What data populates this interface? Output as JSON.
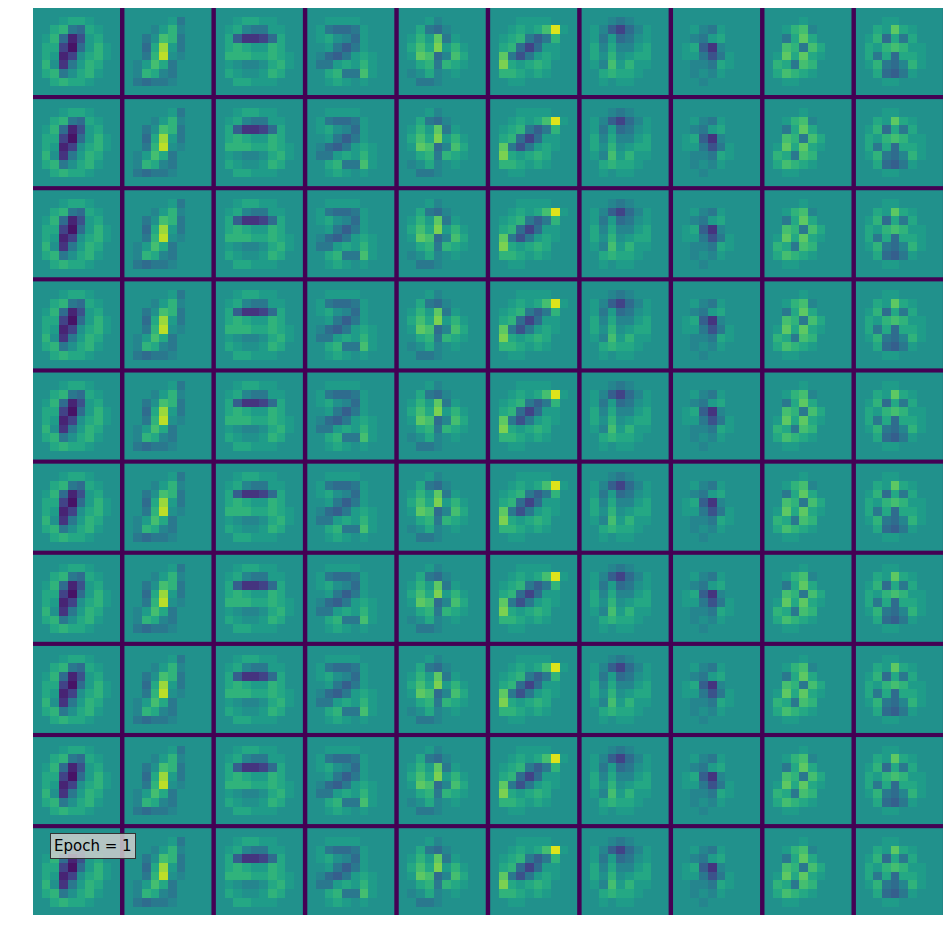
{
  "chart_data": {
    "type": "heatmap_grid",
    "annotation": "Epoch = 1",
    "rows": 10,
    "color": "Viridis",
    "zlim": [
      -1,
      1
    ],
    "tick_labels": false,
    "filters": [
      [
        [
          0,
          0,
          0,
          0,
          0,
          0,
          0,
          0,
          0,
          0
        ],
        [
          0,
          0,
          0,
          0.1,
          0.2,
          0.2,
          0.1,
          0,
          0,
          0
        ],
        [
          0,
          0,
          0.2,
          0.3,
          -0.2,
          -0.3,
          0.2,
          0.1,
          0,
          0
        ],
        [
          0,
          0.1,
          0.3,
          -0.3,
          -0.8,
          -0.5,
          0.1,
          0.2,
          0,
          0
        ],
        [
          0,
          0.2,
          0.2,
          -0.6,
          -0.9,
          -0.3,
          0.1,
          0.3,
          0.1,
          0
        ],
        [
          0,
          0.2,
          0.1,
          -0.8,
          -0.6,
          0,
          0.2,
          0.3,
          0.1,
          0
        ],
        [
          0,
          0.3,
          0,
          -0.7,
          -0.2,
          0.1,
          0.3,
          0.2,
          0,
          0
        ],
        [
          0,
          0.2,
          0.3,
          -0.2,
          0,
          0.2,
          0.3,
          0.1,
          0,
          0
        ],
        [
          0,
          0,
          0.2,
          0.3,
          0.2,
          0.2,
          0.1,
          0,
          0,
          0
        ],
        [
          0,
          0,
          0,
          0,
          0,
          0,
          0,
          0,
          0,
          0
        ]
      ],
      [
        [
          0,
          0,
          0,
          0,
          0,
          0,
          0,
          0,
          0,
          0
        ],
        [
          0,
          0,
          0,
          0,
          0,
          0.1,
          -0.2,
          0,
          0,
          0
        ],
        [
          0,
          0,
          0,
          -0.1,
          0.1,
          0.3,
          -0.1,
          0,
          0,
          0
        ],
        [
          0,
          0,
          -0.2,
          0,
          0.4,
          0.3,
          -0.2,
          0,
          0,
          0
        ],
        [
          0,
          0,
          -0.3,
          0.2,
          0.7,
          0.1,
          -0.2,
          0,
          0,
          0
        ],
        [
          0,
          0,
          -0.2,
          0.3,
          0.8,
          0,
          -0.1,
          0,
          0,
          0
        ],
        [
          0,
          -0.1,
          0.1,
          0.4,
          0.2,
          -0.2,
          0,
          0,
          0,
          0
        ],
        [
          0,
          -0.1,
          0.3,
          0.2,
          -0.1,
          -0.2,
          0,
          0,
          0,
          0
        ],
        [
          0,
          -0.2,
          -0.3,
          -0.2,
          -0.2,
          -0.1,
          0,
          0,
          0,
          0
        ],
        [
          0,
          0,
          0,
          0,
          0,
          0,
          0,
          0,
          0,
          0
        ]
      ],
      [
        [
          0,
          0,
          0,
          0,
          0,
          0,
          0,
          0,
          0,
          0
        ],
        [
          0,
          0,
          0.1,
          0.2,
          0.2,
          0.1,
          0.1,
          0,
          0,
          0
        ],
        [
          0,
          0.1,
          0.2,
          -0.1,
          -0.2,
          -0.2,
          0.1,
          0.1,
          0,
          0
        ],
        [
          0,
          0.2,
          -0.4,
          -0.7,
          -0.7,
          -0.6,
          -0.3,
          0.2,
          0,
          0
        ],
        [
          0,
          0.2,
          0.3,
          0.2,
          0.1,
          0.1,
          0.3,
          0.2,
          0,
          0
        ],
        [
          0,
          0.3,
          0.3,
          0.3,
          0.2,
          0.2,
          0.3,
          0.2,
          0.1,
          0
        ],
        [
          0,
          0.1,
          0,
          -0.1,
          -0.1,
          0,
          0.2,
          0.3,
          0.1,
          0
        ],
        [
          0,
          0.2,
          0.1,
          0,
          0,
          0.1,
          0.3,
          0.2,
          0,
          0
        ],
        [
          0,
          0,
          0.2,
          0.2,
          0.1,
          0.1,
          0.1,
          0,
          0,
          0
        ],
        [
          0,
          0,
          0,
          0,
          0,
          0,
          0,
          0,
          0,
          0
        ]
      ],
      [
        [
          0,
          0,
          0,
          0,
          0,
          0,
          0,
          0,
          0,
          0
        ],
        [
          0,
          0,
          0.1,
          0.1,
          0.1,
          0.1,
          0,
          0,
          0,
          0
        ],
        [
          0,
          0.1,
          -0.2,
          -0.3,
          -0.3,
          -0.2,
          0.1,
          0,
          0,
          0
        ],
        [
          0,
          0.1,
          0.2,
          0,
          -0.1,
          -0.3,
          0.1,
          0,
          0,
          0
        ],
        [
          0,
          0,
          0.1,
          -0.2,
          -0.4,
          -0.2,
          0.1,
          0,
          0,
          0
        ],
        [
          0,
          -0.1,
          -0.3,
          -0.4,
          -0.2,
          0.1,
          0.2,
          0.1,
          0,
          0
        ],
        [
          0,
          -0.2,
          -0.2,
          0.1,
          0.2,
          0.1,
          0.3,
          0.1,
          0,
          0
        ],
        [
          0,
          0,
          0.2,
          0.3,
          -0.2,
          -0.2,
          0.4,
          0.1,
          0,
          0
        ],
        [
          0,
          0,
          0.1,
          0.2,
          0.1,
          0,
          0.1,
          0,
          0,
          0
        ],
        [
          0,
          0,
          0,
          0,
          0,
          0,
          0,
          0,
          0,
          0
        ]
      ],
      [
        [
          0,
          0,
          0,
          0,
          0,
          0,
          0,
          0,
          0,
          0
        ],
        [
          0,
          0,
          0,
          0.1,
          -0.1,
          0,
          0,
          0,
          0,
          0
        ],
        [
          0,
          0,
          0.2,
          -0.2,
          -0.3,
          -0.1,
          0,
          0,
          0,
          0
        ],
        [
          0,
          0.1,
          0.3,
          0.1,
          0.5,
          -0.2,
          0.1,
          0,
          0,
          0
        ],
        [
          0,
          0.2,
          0.4,
          0.2,
          0.6,
          0.1,
          0.3,
          0.1,
          0,
          0
        ],
        [
          0,
          0.1,
          0.5,
          0.4,
          -0.3,
          -0.1,
          0.4,
          0.2,
          0,
          0
        ],
        [
          0,
          0,
          0.2,
          0.3,
          -0.2,
          0.3,
          0.2,
          0.1,
          0,
          0
        ],
        [
          0,
          -0.1,
          0,
          0.2,
          -0.1,
          0,
          0.1,
          0,
          0,
          0
        ],
        [
          0,
          0,
          -0.2,
          -0.2,
          -0.1,
          0,
          0,
          0,
          0,
          0
        ],
        [
          0,
          0,
          0,
          0,
          0,
          0,
          0,
          0,
          0,
          0
        ]
      ],
      [
        [
          0,
          0,
          0,
          0,
          0,
          0,
          0,
          0,
          0,
          0
        ],
        [
          0,
          0,
          0,
          0.1,
          0.1,
          0.1,
          0.1,
          0,
          0,
          0
        ],
        [
          0,
          0,
          0.1,
          0.2,
          0.1,
          0.2,
          0.4,
          0.9,
          0.1,
          0
        ],
        [
          0,
          0.1,
          0.2,
          0.3,
          -0.2,
          -0.4,
          -0.2,
          0.3,
          0,
          0
        ],
        [
          0,
          0.2,
          0.3,
          -0.3,
          -0.6,
          -0.3,
          0.1,
          0.1,
          0,
          0
        ],
        [
          0,
          0.5,
          -0.2,
          -0.5,
          -0.2,
          0.1,
          0.2,
          0.1,
          0,
          0
        ],
        [
          0,
          0.6,
          0.2,
          0.1,
          0.2,
          0.3,
          0.2,
          0,
          0,
          0
        ],
        [
          0,
          0.3,
          0.3,
          0.2,
          0.1,
          0.2,
          0.1,
          0,
          0,
          0
        ],
        [
          0,
          0,
          0.1,
          0.1,
          0,
          0,
          0,
          0,
          0,
          0
        ],
        [
          0,
          0,
          0,
          0,
          0,
          0,
          0,
          0,
          0,
          0
        ]
      ],
      [
        [
          0,
          0,
          0,
          0,
          0,
          0,
          0,
          0,
          0,
          0
        ],
        [
          0,
          0,
          0,
          -0.1,
          -0.2,
          -0.1,
          0,
          0,
          0,
          0
        ],
        [
          0,
          0.1,
          -0.1,
          -0.4,
          -0.6,
          -0.3,
          -0.1,
          0.1,
          0,
          0
        ],
        [
          0,
          0.1,
          -0.2,
          0.1,
          -0.3,
          -0.2,
          0,
          0.1,
          0,
          0
        ],
        [
          0,
          0.2,
          -0.1,
          0.2,
          -0.1,
          -0.1,
          0.1,
          0.2,
          0,
          0
        ],
        [
          0,
          0.2,
          0,
          0.3,
          0,
          0.1,
          0.2,
          0.2,
          0,
          0
        ],
        [
          0,
          0.1,
          -0.1,
          0.4,
          0.1,
          0.3,
          0.1,
          0.1,
          0,
          0
        ],
        [
          0,
          0,
          0.2,
          0.3,
          0.2,
          0.2,
          0.1,
          0,
          0,
          0
        ],
        [
          0,
          0,
          0.1,
          0,
          0.1,
          0.1,
          0,
          0,
          0,
          0
        ],
        [
          0,
          0,
          0,
          0,
          0,
          0,
          0,
          0,
          0,
          0
        ]
      ],
      [
        [
          0,
          0,
          0,
          0,
          0,
          0,
          0,
          0,
          0,
          0
        ],
        [
          0,
          0,
          0,
          0,
          0,
          0,
          0,
          0,
          0,
          0
        ],
        [
          0,
          0,
          0.1,
          -0.1,
          -0.2,
          0.1,
          0,
          0,
          0,
          0
        ],
        [
          0,
          0,
          -0.1,
          -0.2,
          0.1,
          0.2,
          0,
          0,
          0,
          0
        ],
        [
          0,
          0.1,
          0.2,
          -0.4,
          -0.7,
          -0.1,
          0,
          0,
          0,
          0
        ],
        [
          0,
          0.1,
          0.1,
          -0.2,
          -0.5,
          -0.2,
          0.1,
          0,
          0,
          0
        ],
        [
          0,
          0,
          -0.1,
          -0.1,
          -0.2,
          0.2,
          0.1,
          0,
          0,
          0
        ],
        [
          0,
          0,
          -0.1,
          0,
          -0.1,
          0.1,
          0,
          0,
          0,
          0
        ],
        [
          0,
          0,
          0,
          -0.1,
          0,
          0,
          0,
          0,
          0,
          0
        ],
        [
          0,
          0,
          0,
          0,
          0,
          0,
          0,
          0,
          0,
          0
        ]
      ],
      [
        [
          0,
          0,
          0,
          0,
          0,
          0,
          0,
          0,
          0,
          0
        ],
        [
          0,
          0,
          0,
          0,
          0.1,
          0,
          0,
          0,
          0,
          0
        ],
        [
          0,
          0,
          0.1,
          0.3,
          0.4,
          -0.1,
          0,
          0,
          0,
          0
        ],
        [
          0,
          0,
          -0.2,
          0.2,
          0.5,
          0.2,
          0,
          0,
          0,
          0
        ],
        [
          0,
          0,
          0.4,
          0.3,
          -0.2,
          0.4,
          0.2,
          0,
          0,
          0
        ],
        [
          0,
          0.1,
          0.5,
          0.2,
          0.5,
          0.2,
          0.1,
          0,
          0,
          0
        ],
        [
          0,
          0.3,
          0.2,
          -0.2,
          0.4,
          0.3,
          0,
          0,
          0,
          0
        ],
        [
          0,
          0.2,
          0.4,
          0.3,
          0.2,
          0.1,
          0,
          0,
          0,
          0
        ],
        [
          0,
          0,
          0.1,
          0.1,
          0,
          0,
          0,
          0,
          0,
          0
        ],
        [
          0,
          0,
          0,
          0,
          0,
          0,
          0,
          0,
          0,
          0
        ]
      ],
      [
        [
          0,
          0,
          0,
          0,
          0,
          0,
          0,
          0,
          0,
          0
        ],
        [
          0,
          0,
          0,
          0.1,
          0.1,
          0,
          0,
          0,
          0,
          0
        ],
        [
          0,
          0,
          0.2,
          0.1,
          0.5,
          0.2,
          0.1,
          0,
          0,
          0
        ],
        [
          0,
          0.1,
          0.3,
          -0.3,
          0.2,
          -0.2,
          0.2,
          0,
          0,
          0
        ],
        [
          0,
          0.2,
          0.1,
          0.3,
          0.4,
          0.3,
          0.1,
          0.1,
          0,
          0
        ],
        [
          0,
          0.2,
          -0.2,
          0.2,
          -0.3,
          0.2,
          0.2,
          0.1,
          0,
          0
        ],
        [
          0,
          0.1,
          0.3,
          -0.2,
          -0.3,
          -0.1,
          0.3,
          0.1,
          0,
          0
        ],
        [
          0,
          0,
          0.2,
          -0.3,
          -0.4,
          -0.2,
          0.1,
          0,
          0,
          0
        ],
        [
          0,
          0,
          0,
          0.1,
          0.1,
          0,
          0,
          0,
          0,
          0
        ],
        [
          0,
          0,
          0,
          0,
          0,
          0,
          0,
          0,
          0,
          0
        ]
      ]
    ]
  }
}
